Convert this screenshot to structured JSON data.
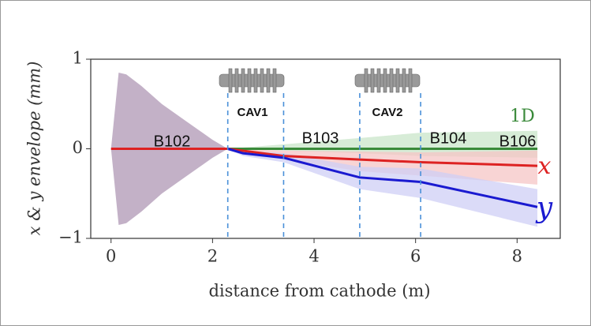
{
  "chart_data": {
    "type": "line",
    "xlabel": "distance from cathode (m)",
    "ylabel": "x & y envelope (mm)",
    "xlim": [
      -0.4,
      8.85
    ],
    "ylim": [
      -1,
      1
    ],
    "xticks": [
      0,
      2,
      4,
      6,
      8
    ],
    "yticks": [
      {
        "value": -1,
        "label": "−1"
      },
      0,
      1
    ],
    "envelope": {
      "color": "#b9a3bd",
      "x": [
        0,
        0.15,
        0.3,
        0.6,
        1.0,
        1.5,
        2.0,
        2.3
      ],
      "upper": [
        0,
        0.85,
        0.83,
        0.7,
        0.5,
        0.3,
        0.1,
        0
      ],
      "lower": [
        0,
        -0.85,
        -0.83,
        -0.7,
        -0.5,
        -0.3,
        -0.1,
        0
      ]
    },
    "series": [
      {
        "name": "1D",
        "color": "#3a8a3a",
        "band_color": "#c9e6c9",
        "x": [
          2.3,
          3.4,
          4.9,
          6.1,
          8.4
        ],
        "values": [
          0,
          0,
          0,
          0,
          0
        ],
        "upper": [
          0,
          0.05,
          0.12,
          0.18,
          0.2
        ],
        "lower": [
          0,
          -0.02,
          -0.05,
          -0.08,
          -0.1
        ]
      },
      {
        "name": "x",
        "color": "#dd2222",
        "band_color": "#f5c6c6",
        "x": [
          0,
          2.3,
          3.4,
          4.9,
          6.1,
          8.4
        ],
        "values": [
          0,
          0,
          -0.08,
          -0.12,
          -0.15,
          -0.19
        ],
        "upper": [
          0,
          0,
          -0.02,
          -0.03,
          -0.04,
          -0.02
        ],
        "lower": [
          0,
          0,
          -0.12,
          -0.25,
          -0.3,
          -0.4
        ]
      },
      {
        "name": "y",
        "color": "#1a1ad0",
        "band_color": "#cfcff5",
        "x": [
          2.3,
          2.6,
          3.4,
          4.9,
          6.1,
          8.4
        ],
        "values": [
          0,
          -0.05,
          -0.1,
          -0.32,
          -0.37,
          -0.65
        ],
        "upper": [
          0,
          -0.02,
          -0.05,
          -0.2,
          -0.22,
          -0.45
        ],
        "lower": [
          0,
          -0.08,
          -0.15,
          -0.45,
          -0.55,
          -0.87
        ]
      }
    ],
    "markers": [
      2.3,
      3.4,
      4.9,
      6.1
    ],
    "annotations": [
      "B102",
      "B103",
      "B104",
      "B106",
      "CAV1",
      "CAV2"
    ]
  }
}
